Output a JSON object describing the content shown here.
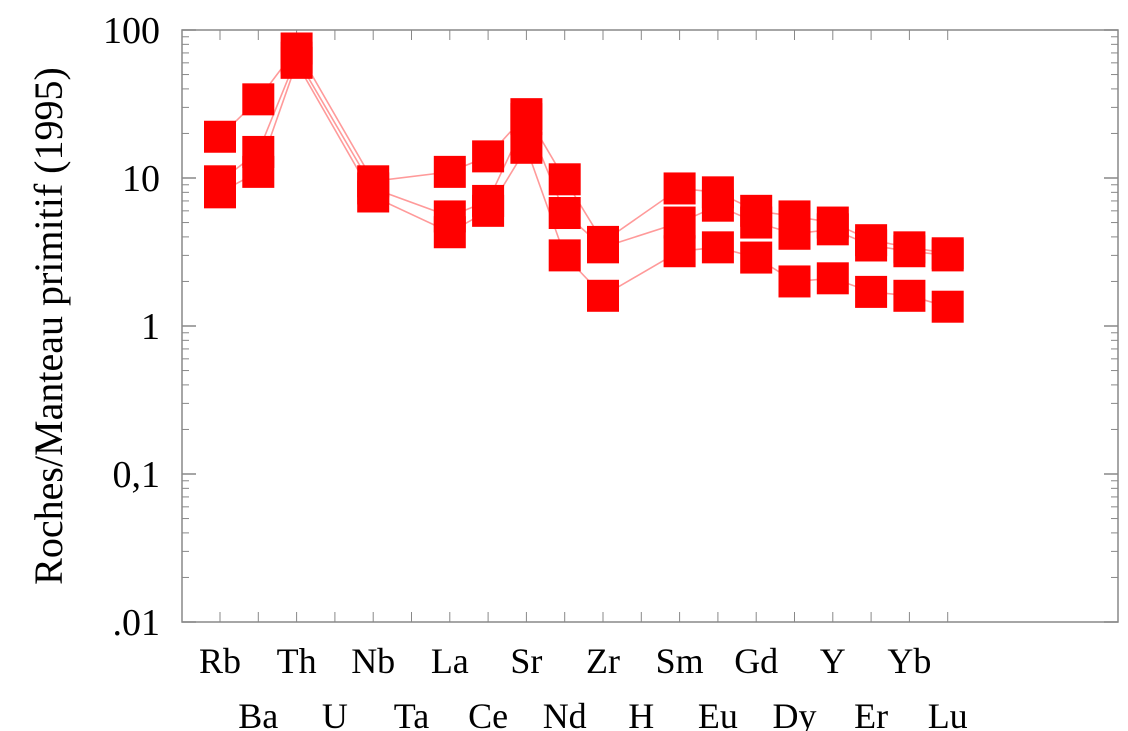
{
  "chart_data": {
    "type": "line",
    "title": "",
    "xlabel": "",
    "ylabel": "Roches/Manteau primitif (1995)",
    "yscale": "log",
    "ylim": [
      0.01,
      100
    ],
    "y_tick_labels": [
      {
        "value": 100,
        "label": "100"
      },
      {
        "value": 10,
        "label": "10"
      },
      {
        "value": 1,
        "label": "1"
      },
      {
        "value": 0.1,
        "label": "0,1"
      },
      {
        "value": 0.01,
        "label": ".01"
      }
    ],
    "grid": false,
    "colors": {
      "series": "#ff0000",
      "line": "#ff9a9a",
      "axis": "#888888"
    },
    "categories": [
      "Rb",
      "Ba",
      "Th",
      "U",
      "Nb",
      "Ta",
      "La",
      "Ce",
      "Sr",
      "Nd",
      "Zr",
      "H",
      "Sm",
      "Eu",
      "Gd",
      "Dy",
      "Y",
      "Er",
      "Yb",
      "Lu"
    ],
    "category_label_rows": [
      "top",
      "bottom",
      "top",
      "bottom",
      "top",
      "bottom",
      "top",
      "bottom",
      "top",
      "bottom",
      "top",
      "bottom",
      "top",
      "bottom",
      "top",
      "bottom",
      "top",
      "bottom",
      "top",
      "bottom"
    ],
    "series": [
      {
        "values": [
          19,
          34,
          75,
          null,
          9.5,
          null,
          11,
          14,
          27,
          9.8,
          3.7,
          null,
          8.5,
          8,
          6,
          5.5,
          5,
          3.8,
          3.4,
          3.1
        ]
      },
      {
        "values": [
          9.5,
          15,
          65,
          null,
          8.5,
          null,
          5.5,
          7,
          25,
          5.8,
          3.4,
          null,
          5,
          6.5,
          5,
          4.2,
          4.5,
          3.5,
          3.2,
          3
        ]
      },
      {
        "values": [
          8,
          11,
          60,
          null,
          7.5,
          null,
          4.3,
          6,
          16,
          3,
          1.6,
          null,
          3.2,
          3.4,
          2.9,
          2,
          2.1,
          1.7,
          1.6,
          1.35
        ]
      }
    ]
  }
}
